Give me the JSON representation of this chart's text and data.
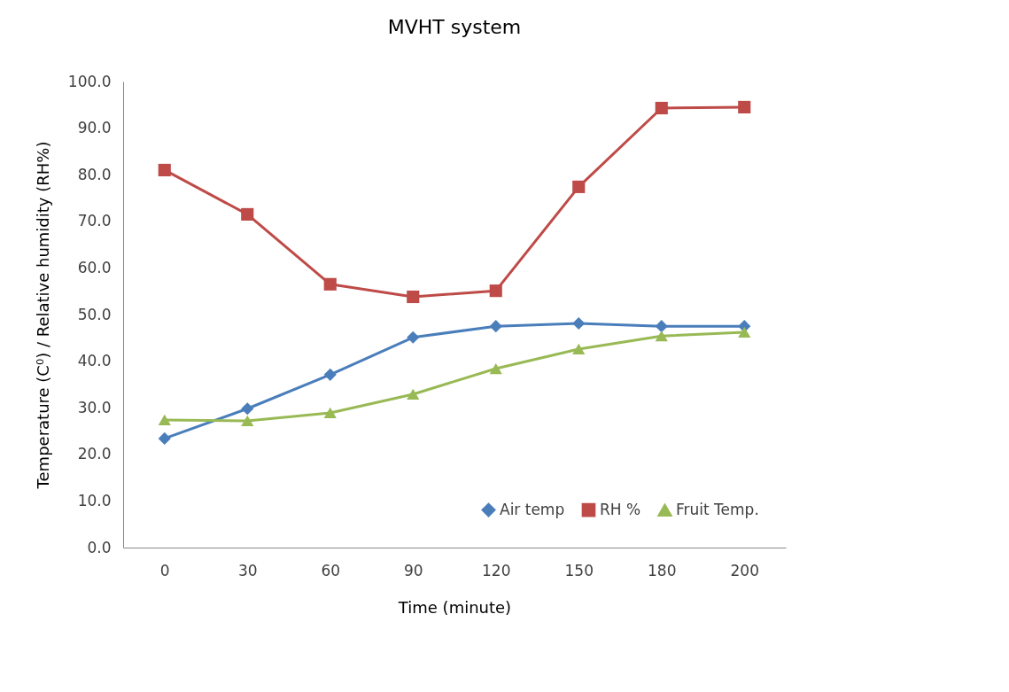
{
  "chart_data": {
    "type": "line",
    "title": "MVHT system",
    "xlabel": "Time (minute)",
    "ylabel": "Temperature (C⁰) / Relative humidity (RH%)",
    "categories": [
      "0",
      "30",
      "60",
      "90",
      "120",
      "150",
      "180",
      "200"
    ],
    "series": [
      {
        "name": "Air temp",
        "color": "#4a7ebb",
        "marker": "diamond",
        "values": [
          23.4,
          29.8,
          37.1,
          45.1,
          47.5,
          48.1,
          47.5,
          47.5
        ]
      },
      {
        "name": "RH %",
        "color": "#be4b48",
        "marker": "square",
        "values": [
          81.0,
          71.5,
          56.5,
          53.8,
          55.1,
          77.4,
          94.3,
          94.5
        ]
      },
      {
        "name": "Fruit Temp.",
        "color": "#98b954",
        "marker": "triangle",
        "values": [
          27.4,
          27.2,
          28.9,
          32.9,
          38.4,
          42.6,
          45.4,
          46.2
        ]
      }
    ],
    "ylim": [
      0,
      100
    ],
    "yticks": [
      {
        "value": 0,
        "label": "0.0"
      },
      {
        "value": 10,
        "label": "10.0"
      },
      {
        "value": 20,
        "label": "20.0"
      },
      {
        "value": 30,
        "label": "30.0"
      },
      {
        "value": 40,
        "label": "40.0"
      },
      {
        "value": 50,
        "label": "50.0"
      },
      {
        "value": 60,
        "label": "60.0"
      },
      {
        "value": 70,
        "label": "70.0"
      },
      {
        "value": 80,
        "label": "80.0"
      },
      {
        "value": 90,
        "label": "90.0"
      },
      {
        "value": 100,
        "label": "100.0"
      }
    ],
    "grid": false,
    "legend": "bottom right",
    "line_style": "solid"
  }
}
